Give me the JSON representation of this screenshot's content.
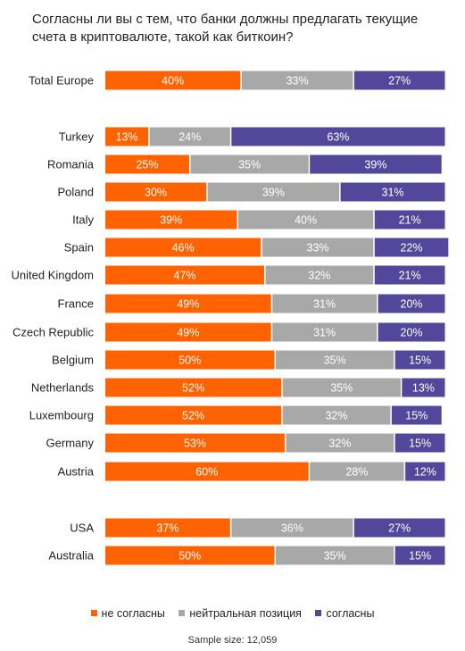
{
  "chart_data": {
    "type": "bar",
    "orientation": "horizontal",
    "stacked": true,
    "title": "Согласны ли вы с тем, что банки должны предлагать текущие\nсчета в криптовалюте, такой как биткоин?",
    "categories": [
      "Total Europe",
      "Turkey",
      "Romania",
      "Poland",
      "Italy",
      "Spain",
      "United Kingdom",
      "France",
      "Czech Republic",
      "Belgium",
      "Netherlands",
      "Luxembourg",
      "Germany",
      "Austria",
      "USA",
      "Australia"
    ],
    "series": [
      {
        "name": "не согласны",
        "color": "#ff6200",
        "values": [
          40,
          13,
          25,
          30,
          39,
          46,
          47,
          49,
          49,
          50,
          52,
          52,
          53,
          60,
          37,
          50
        ]
      },
      {
        "name": "нейтральная позиция",
        "color": "#a8a8a8",
        "values": [
          33,
          24,
          35,
          39,
          40,
          33,
          32,
          31,
          31,
          35,
          35,
          32,
          32,
          28,
          36,
          35
        ]
      },
      {
        "name": "согласны",
        "color": "#52479b",
        "values": [
          27,
          63,
          39,
          31,
          21,
          22,
          21,
          20,
          20,
          15,
          13,
          15,
          15,
          12,
          27,
          15
        ]
      }
    ],
    "value_suffix": "%",
    "xlim": [
      0,
      100
    ],
    "grid": false,
    "legend_position": "bottom",
    "footnote": "Sample size: 12,059"
  }
}
